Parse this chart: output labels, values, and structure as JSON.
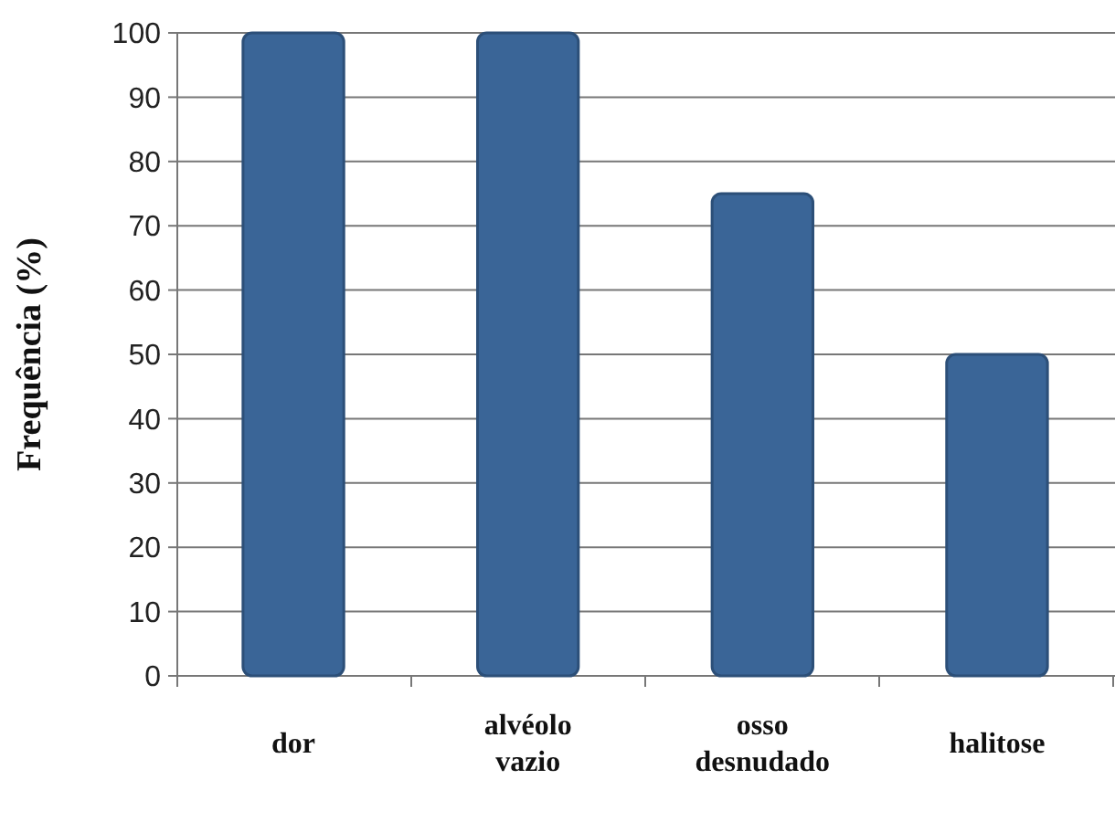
{
  "chart_data": {
    "type": "bar",
    "ylabel": "Frequência (%)",
    "categories": [
      "dor",
      "alvéolo vazio",
      "osso desnudado",
      "halitose"
    ],
    "values": [
      100,
      100,
      75,
      50
    ],
    "color": "#3a6597",
    "ylim": [
      0,
      100
    ],
    "yticks": [
      0,
      10,
      20,
      30,
      40,
      50,
      60,
      70,
      80,
      90,
      100
    ],
    "grid": "y"
  }
}
